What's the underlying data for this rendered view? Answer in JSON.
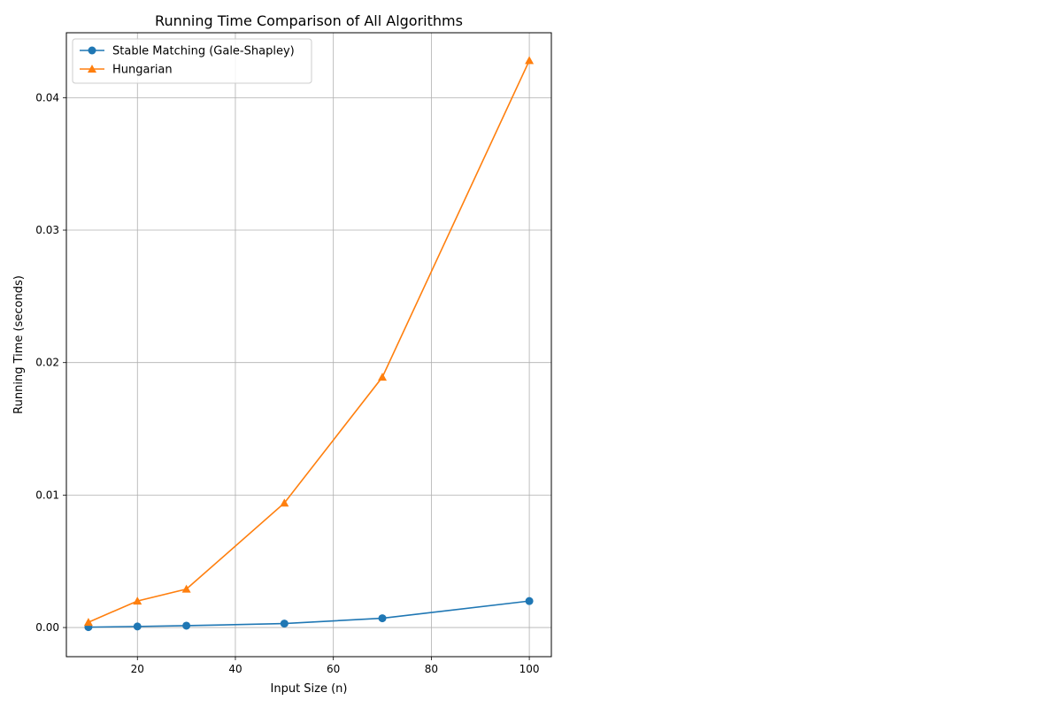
{
  "chart_data": {
    "type": "line",
    "title": "Running Time Comparison of All Algorithms",
    "xlabel": "Input Size (n)",
    "ylabel": "Running Time (seconds)",
    "xlim": [
      5.5,
      104.5
    ],
    "ylim": [
      -0.0022,
      0.0449
    ],
    "xticks": [
      20,
      40,
      60,
      80,
      100
    ],
    "xtick_labels": [
      "20",
      "40",
      "60",
      "80",
      "100"
    ],
    "yticks": [
      0.0,
      0.01,
      0.02,
      0.03,
      0.04
    ],
    "ytick_labels": [
      "0.00",
      "0.01",
      "0.02",
      "0.03",
      "0.04"
    ],
    "grid": true,
    "legend_position": "top-left",
    "x": [
      10,
      20,
      30,
      50,
      70,
      100
    ],
    "series": [
      {
        "name": "Stable Matching (Gale-Shapley)",
        "marker": "circle",
        "color": "#1f77b4",
        "values": [
          3e-05,
          8e-05,
          0.00014,
          0.0003,
          0.0007,
          0.002
        ]
      },
      {
        "name": "Hungarian",
        "marker": "triangle",
        "color": "#ff7f0e",
        "values": [
          0.0004,
          0.002,
          0.0029,
          0.0094,
          0.0189,
          0.0428
        ]
      }
    ]
  }
}
